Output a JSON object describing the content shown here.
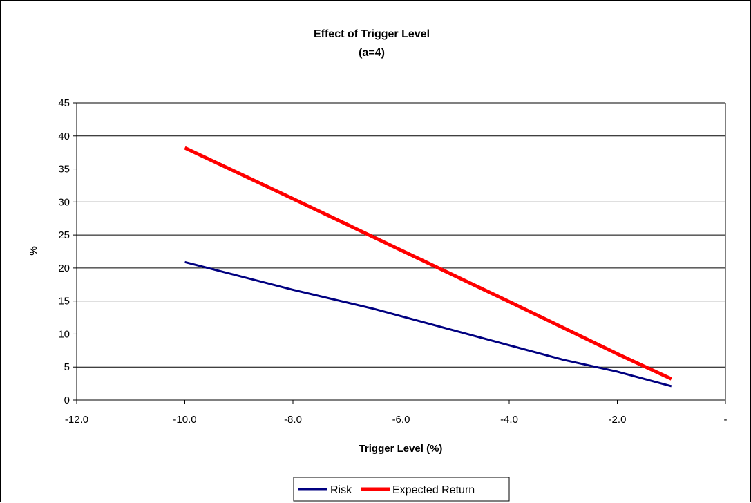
{
  "chart_data": {
    "type": "line",
    "title": "Effect of Trigger Level",
    "subtitle": "(a=4)",
    "xlabel": "Trigger Level (%)",
    "ylabel": "%",
    "xlim": [
      -12,
      0
    ],
    "ylim": [
      0,
      45
    ],
    "x_ticks": [
      -12,
      -10,
      -8,
      -6,
      -4,
      -2,
      0
    ],
    "x_tick_labels": [
      "-12.0",
      "-10.0",
      "-8.0",
      "-6.0",
      "-4.0",
      "-2.0",
      "-"
    ],
    "y_ticks": [
      0,
      5,
      10,
      15,
      20,
      25,
      30,
      35,
      40,
      45
    ],
    "y_tick_labels": [
      "0",
      "5",
      "10",
      "15",
      "20",
      "25",
      "30",
      "35",
      "40",
      "45"
    ],
    "grid": "horizontal",
    "legend_position": "bottom",
    "series": [
      {
        "name": "Risk",
        "color": "#000080",
        "x": [
          -10,
          -8,
          -6.5,
          -5,
          -3,
          -2,
          -1
        ],
        "y": [
          20.9,
          16.7,
          13.8,
          10.5,
          6.1,
          4.3,
          2.1
        ]
      },
      {
        "name": "Expected Return",
        "color": "#ff0000",
        "x": [
          -10,
          -8,
          -6,
          -4,
          -2,
          -1
        ],
        "y": [
          38.2,
          30.5,
          22.7,
          14.9,
          7.0,
          3.2
        ]
      }
    ]
  }
}
